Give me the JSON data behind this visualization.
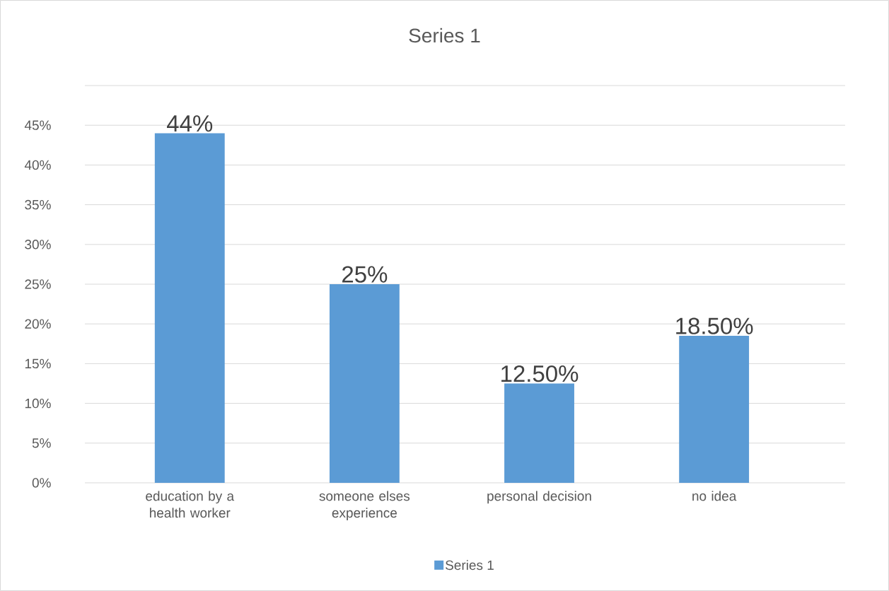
{
  "chart_data": {
    "type": "bar",
    "title": "Series 1",
    "categories": [
      "education by a health worker",
      "someone elses experience",
      "personal decision",
      "no idea"
    ],
    "series": [
      {
        "name": "Series 1",
        "color": "#5b9bd5",
        "values": [
          44,
          25,
          12.5,
          18.5
        ],
        "value_labels": [
          "44%",
          "25%",
          "12.50%",
          "18.50%"
        ]
      }
    ],
    "ylim": [
      0,
      50
    ],
    "yticks": [
      {
        "value": 0,
        "label": "0%"
      },
      {
        "value": 5,
        "label": "5%"
      },
      {
        "value": 10,
        "label": "10%"
      },
      {
        "value": 15,
        "label": "15%"
      },
      {
        "value": 20,
        "label": "20%"
      },
      {
        "value": 25,
        "label": "25%"
      },
      {
        "value": 30,
        "label": "30%"
      },
      {
        "value": 35,
        "label": "35%"
      },
      {
        "value": 40,
        "label": "40%"
      },
      {
        "value": 45,
        "label": "45%"
      },
      {
        "value": 50,
        "label": null
      }
    ],
    "grid": "y",
    "legend": "bottom"
  }
}
